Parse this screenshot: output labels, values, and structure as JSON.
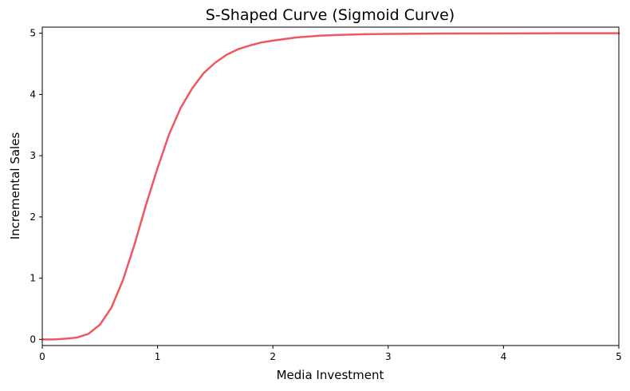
{
  "chart_data": {
    "type": "line",
    "title": "S-Shaped Curve (Sigmoid Curve)",
    "xlabel": "Media Investment",
    "ylabel": "Incremental Sales",
    "xlim": [
      0,
      5
    ],
    "ylim": [
      -0.1,
      5.1
    ],
    "xticks": [
      0,
      1,
      2,
      3,
      4,
      5
    ],
    "yticks": [
      0,
      1,
      2,
      3,
      4,
      5
    ],
    "xtick_labels": [
      "0",
      "1",
      "2",
      "3",
      "4",
      "5"
    ],
    "ytick_labels": [
      "0",
      "1",
      "2",
      "3",
      "4",
      "5"
    ],
    "grid": false,
    "series": [
      {
        "color": "#f0565f",
        "x": [
          0,
          0.1,
          0.2,
          0.3,
          0.4,
          0.5,
          0.6,
          0.7,
          0.8,
          0.9,
          1.0,
          1.1,
          1.2,
          1.3,
          1.4,
          1.5,
          1.6,
          1.7,
          1.8,
          1.9,
          2.0,
          2.2,
          2.4,
          2.6,
          2.8,
          3.0,
          3.5,
          4.0,
          4.5,
          5.0
        ],
        "y": [
          0,
          0.0,
          0.01,
          0.03,
          0.09,
          0.24,
          0.52,
          0.97,
          1.55,
          2.2,
          2.8,
          3.35,
          3.78,
          4.1,
          4.35,
          4.52,
          4.65,
          4.74,
          4.8,
          4.85,
          4.88,
          4.93,
          4.96,
          4.975,
          4.985,
          4.99,
          4.995,
          4.998,
          5.0,
          5.0
        ]
      }
    ]
  }
}
